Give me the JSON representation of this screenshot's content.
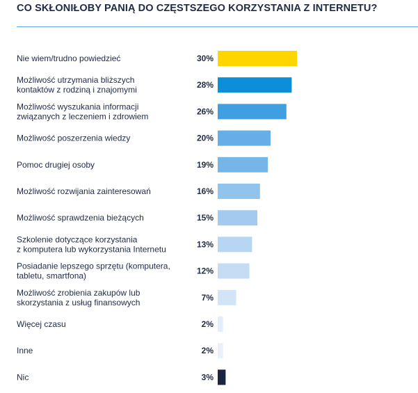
{
  "chart_data": {
    "type": "bar",
    "orientation": "horizontal",
    "title": "CO SKŁONIŁOBY PANIĄ DO CZĘSTSZEGO KORZYSTANIA Z INTERNETU?",
    "xlabel": "",
    "ylabel": "",
    "xlim": [
      0,
      30
    ],
    "grid": false,
    "categories": [
      [
        "Nie wiem/trudno powiedzieć"
      ],
      [
        "Możliwość utrzymania bliższych",
        "kontaktów z rodziną i znajomymi"
      ],
      [
        "Możliwość wyszukania informacji",
        "związanych z leczeniem i zdrowiem"
      ],
      [
        "Możliwość poszerzenia wiedzy"
      ],
      [
        "Pomoc drugiej osoby"
      ],
      [
        "Możliwość rozwijania zainteresowań"
      ],
      [
        "Możliwość sprawdzenia bieżących"
      ],
      [
        "Szkolenie dotyczące korzystania",
        "z komputera lub wykorzystania Internetu"
      ],
      [
        "Posiadanie lepszego sprzętu (komputera,",
        "tabletu, smartfona)"
      ],
      [
        "Możliwość zrobienia zakupów lub",
        "skorzystania z usług finansowych"
      ],
      [
        "Więcej czasu"
      ],
      [
        "Inne"
      ],
      [
        "Nic"
      ]
    ],
    "values": [
      30,
      28,
      26,
      20,
      19,
      16,
      15,
      13,
      12,
      7,
      2,
      2,
      3
    ],
    "value_labels": [
      "30%",
      "28%",
      "26%",
      "20%",
      "19%",
      "16%",
      "15%",
      "13%",
      "12%",
      "7%",
      "2%",
      "2%",
      "3%"
    ],
    "colors": [
      "#ffd500",
      "#0c8ed9",
      "#3f9fe0",
      "#66aee6",
      "#76b5e8",
      "#92c3ec",
      "#a3cbef",
      "#b6d6f3",
      "#c4ddf5",
      "#d2e5f8",
      "#e2eefb",
      "#e8f1fb",
      "#1b2540"
    ]
  }
}
